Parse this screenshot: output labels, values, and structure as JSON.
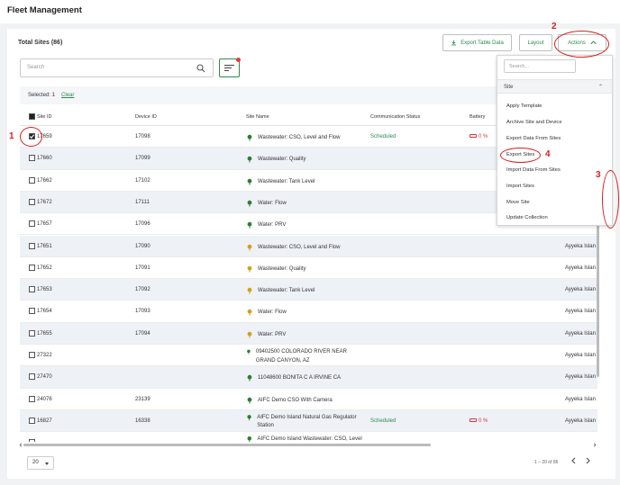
{
  "header": {
    "title": "Fleet Management"
  },
  "toolbar": {
    "total_label": "Total Sites (86)",
    "export_table": "Export Table Data",
    "layout": "Layout",
    "actions": "Actions"
  },
  "search": {
    "placeholder": "Search"
  },
  "selection": {
    "selected": "Selected: 1",
    "clear": "Clear"
  },
  "table": {
    "columns": [
      "Site ID",
      "Device ID",
      "Site Name",
      "Communication Status",
      "Battery"
    ],
    "rows": [
      {
        "site": "17659",
        "device": "17098",
        "name": "Wastewater: CSO, Level and Flow",
        "comm": "Scheduled",
        "battery": "0 %",
        "loc": "",
        "checked": true
      },
      {
        "site": "17660",
        "device": "17099",
        "name": "Wastewater: Quality",
        "comm": "",
        "battery": "",
        "loc": ""
      },
      {
        "site": "17662",
        "device": "17102",
        "name": "Wastewater: Tank Level",
        "comm": "",
        "battery": "",
        "loc": ""
      },
      {
        "site": "17672",
        "device": "17111",
        "name": "Water: Flow",
        "comm": "",
        "battery": "",
        "loc": ""
      },
      {
        "site": "17657",
        "device": "17096",
        "name": "Water: PRV",
        "comm": "",
        "battery": "",
        "loc": ""
      },
      {
        "site": "17651",
        "device": "17090",
        "name": "Wastewater: CSO, Level and Flow",
        "comm": "",
        "battery": "",
        "loc": "Ayyeka Islan"
      },
      {
        "site": "17652",
        "device": "17091",
        "name": "Wastewater: Quality",
        "comm": "",
        "battery": "",
        "loc": "Ayyeka Islan"
      },
      {
        "site": "17653",
        "device": "17092",
        "name": "Wastewater: Tank Level",
        "comm": "",
        "battery": "",
        "loc": "Ayyeka Islan"
      },
      {
        "site": "17654",
        "device": "17093",
        "name": "Water: Flow",
        "comm": "",
        "battery": "",
        "loc": "Ayyeka Islan"
      },
      {
        "site": "17655",
        "device": "17094",
        "name": "Water: PRV",
        "comm": "",
        "battery": "",
        "loc": "Ayyeka Islan"
      },
      {
        "site": "27322",
        "device": "",
        "name": "09402500 COLORADO RIVER NEAR GRAND CANYON, AZ",
        "comm": "",
        "battery": "",
        "loc": "Ayyeka Islan"
      },
      {
        "site": "27470",
        "device": "",
        "name": "11048600 BONITA C A IRVINE CA",
        "comm": "",
        "battery": "",
        "loc": "Ayyeka Islan"
      },
      {
        "site": "24076",
        "device": "23139",
        "name": "AIFC Demo CSO With Camera",
        "comm": "",
        "battery": "",
        "loc": "Ayyeka Islan"
      },
      {
        "site": "16827",
        "device": "16338",
        "name": "AIFC Demo Island Natural Gas Regulator Station",
        "comm": "Scheduled",
        "battery": "0 %",
        "loc": "Ayyeka Islan"
      },
      {
        "site": "",
        "device": "",
        "name": "AIFC Demo Island Wastewater: CSO, Level an",
        "comm": "",
        "battery": "",
        "loc": ""
      }
    ]
  },
  "pagination": {
    "page_size": "20",
    "info": "1 – 20 of 86"
  },
  "actions_menu": {
    "search_placeholder": "Search...",
    "group": "Site",
    "items": [
      "Apply Template",
      "Archive Site and Device",
      "Export Data From Sites",
      "Export Sites",
      "Import Data From Sites",
      "Import Sites",
      "Move Site",
      "Update Collection"
    ]
  },
  "annotations": {
    "a1": "1",
    "a2": "2",
    "a3": "3",
    "a4": "4"
  },
  "colors": {
    "accent_green": "#2e8a52",
    "annotation_red": "#d61f1f",
    "battery_red": "#d23b3b"
  }
}
